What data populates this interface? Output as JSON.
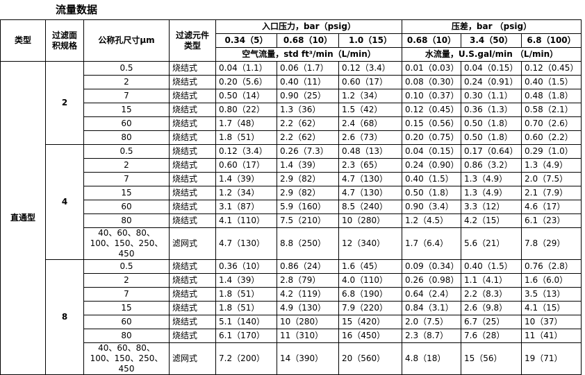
{
  "title": "流量数据",
  "header": {
    "type": "类型",
    "area": "过滤面积规格",
    "pore": "公称孔尺寸μm",
    "element": "过滤元件类型",
    "inlet": "入口压力，bar（psig）",
    "diff": "压差，bar （psig）",
    "pressures": [
      "0.34（5）",
      "0.68（10）",
      "1.0（15）",
      "0.68（10）",
      "3.4（50）",
      "6.8（100）"
    ],
    "air": "空气流量，std ft³/min（L/min）",
    "water": "水流量，U.S.gal/min （L/min）"
  },
  "table": {
    "category": "直通型",
    "groups": [
      {
        "area": "2",
        "rows": [
          [
            "0.5",
            "烧结式",
            "0.04（1.1）",
            "0.06（1.7）",
            "0.12（3.4）",
            "0.01（0.03）",
            "0.04（0.15）",
            "0.12（0.45）"
          ],
          [
            "2",
            "烧结式",
            "0.20（5.6）",
            "0.40（11）",
            "0.60（17）",
            "0.08（0.30）",
            "0.24（0.91）",
            "0.40（1.5）"
          ],
          [
            "7",
            "烧结式",
            "0.50（14）",
            "0.90（25）",
            "1.2（34）",
            "0.10（0.37）",
            "0.30（1.1）",
            "0.48（1.8）"
          ],
          [
            "15",
            "烧结式",
            "0.80（22）",
            "1.3（36）",
            "1.5（42）",
            "0.12（0.45）",
            "0.36（1.3）",
            "0.58（2.1）"
          ],
          [
            "60",
            "烧结式",
            "1.7（48）",
            "2.2（62）",
            "2.4（68）",
            "0.15（0.56）",
            "0.50（1.8）",
            "0.70（2.6）"
          ],
          [
            "80",
            "烧结式",
            "1.8（51）",
            "2.2（62）",
            "2.6（73）",
            "0.20（0.75）",
            "0.50（1.8）",
            "0.60（2.2）"
          ]
        ]
      },
      {
        "area": "4",
        "rows": [
          [
            "0.5",
            "烧结式",
            "0.12（3.4）",
            "0.26（7.3）",
            "0.48（13）",
            "0.04（0.15）",
            "0.17（0.64）",
            "0.29（1.0）"
          ],
          [
            "2",
            "烧结式",
            "0.60（17）",
            "1.4（39）",
            "2.3（65）",
            "0.24（0.90）",
            "0.86（3.2）",
            "1.3（4.9）"
          ],
          [
            "7",
            "烧结式",
            "1.4（39）",
            "2.9（82）",
            "4.7（130）",
            "0.40（1.5）",
            "1.3（4.9）",
            "2.0（7.5）"
          ],
          [
            "15",
            "烧结式",
            "1.2（34）",
            "2.9（82）",
            "4.7（130）",
            "0.50（1.8）",
            "1.3（4.9）",
            "2.1（7.9）"
          ],
          [
            "60",
            "烧结式",
            "3.1（87）",
            "5.9（160）",
            "8.5（240）",
            "0.90（3.4）",
            "3.3（12）",
            "4.6（17）"
          ],
          [
            "80",
            "烧结式",
            "4.1（110）",
            "7.5（210）",
            "10（280）",
            "1.2（4.5）",
            "4.2（15）",
            "6.1（23）"
          ],
          [
            "40、60、80、100、150、250、450",
            "滤网式",
            "4.7（130）",
            "8.8（250）",
            "12（340）",
            "1.7（6.4）",
            "5.6（21）",
            "7.8（29）"
          ]
        ]
      },
      {
        "area": "8",
        "rows": [
          [
            "0.5",
            "烧结式",
            "0.36（10）",
            "0.86（24）",
            "1.6（45）",
            "0.09（0.34）",
            "0.40（1.5）",
            "0.76（2.8）"
          ],
          [
            "2",
            "烧结式",
            "1.4（39）",
            "2.8（79）",
            "4.0（110）",
            "0.26（0.98）",
            "1.1（4.1）",
            "1.6（6.0）"
          ],
          [
            "7",
            "烧结式",
            "1.8（51）",
            "4.2（119）",
            "6.8（190）",
            "0.64（2.4）",
            "2.2（8.3）",
            "3.5（13）"
          ],
          [
            "15",
            "烧结式",
            "1.8（51）",
            "4.9（130）",
            "7.9（220）",
            "0.84（3.1）",
            "2.6（9.8）",
            "4.1（15）"
          ],
          [
            "60",
            "烧结式",
            "5.1（140）",
            "10（280）",
            "15（420）",
            "2.0（7.5）",
            "6.7（25）",
            "10（37）"
          ],
          [
            "80",
            "烧结式",
            "6.1（170）",
            "11（310）",
            "16（450）",
            "2.3（8.7）",
            "7.6（28）",
            "11（41）"
          ],
          [
            "40、60、80、100、150、250、450",
            "滤网式",
            "7.2（200）",
            "14（390）",
            "20（560）",
            "4.8（18）",
            "15（56）",
            "19（71）"
          ]
        ]
      }
    ]
  }
}
